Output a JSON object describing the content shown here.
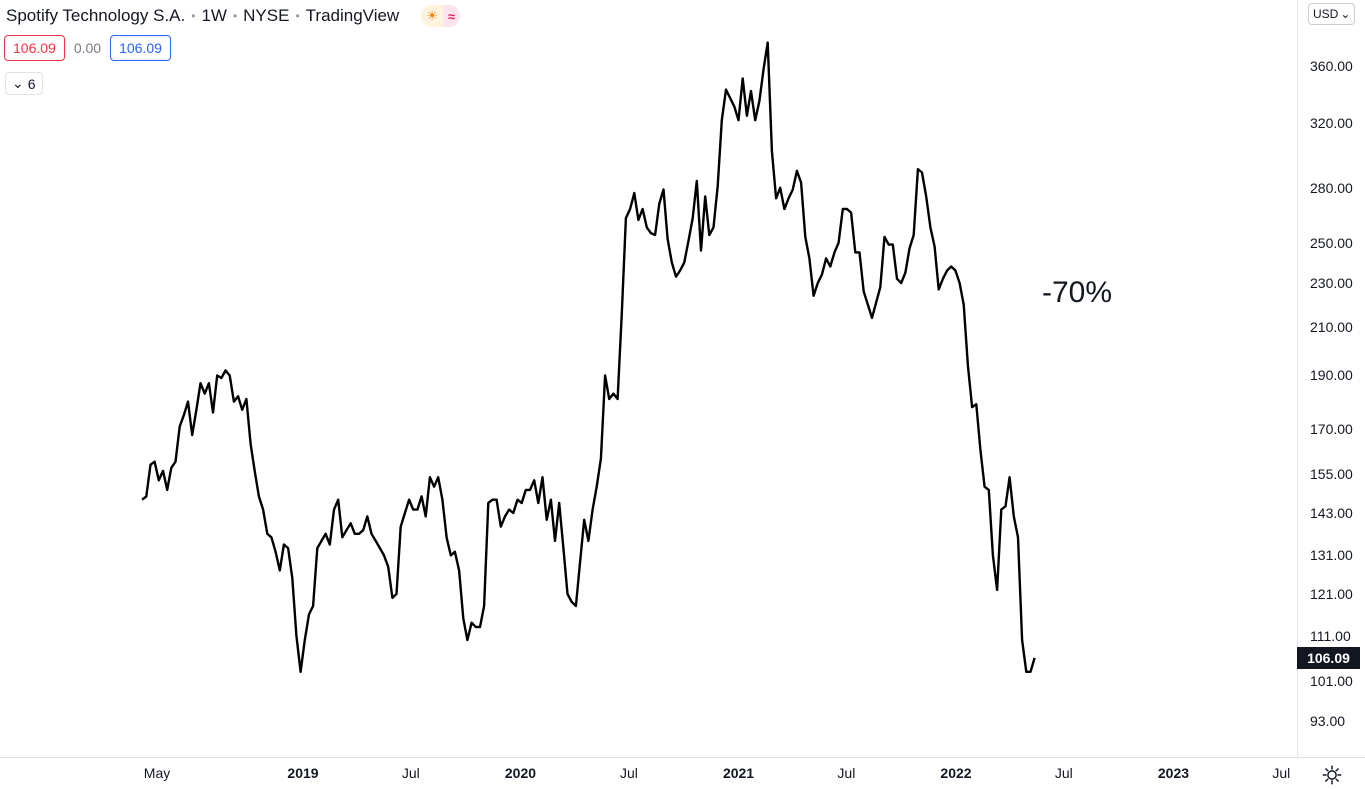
{
  "header": {
    "symbol": "Spotify Technology S.A.",
    "interval": "1W",
    "exchange": "NYSE",
    "source": "TradingView",
    "sun_icon": "sun-icon",
    "wave_icon": "wave-icon",
    "sun_glyph": "☀",
    "wave_glyph": "≈"
  },
  "ohlc": {
    "sell": "106.09",
    "change": "0.00",
    "buy": "106.09"
  },
  "indicators": {
    "count": "6",
    "chevron": "⌄"
  },
  "currency": {
    "label": "USD",
    "chevron": "⌄"
  },
  "annotation": "-70%",
  "price_tag": "106.09",
  "chart_data": {
    "type": "line",
    "scale": "log",
    "x_start": "2018-04-06",
    "x_step_days": 7,
    "y_ticks": [
      "360.00",
      "320.00",
      "280.00",
      "250.00",
      "230.00",
      "210.00",
      "190.00",
      "170.00",
      "155.00",
      "143.00",
      "131.00",
      "121.00",
      "111.00",
      "101.00",
      "93.00"
    ],
    "x_ticks": [
      {
        "label": "May",
        "date": "2018-05-01",
        "bold": false
      },
      {
        "label": "2019",
        "date": "2019-01-01",
        "bold": true
      },
      {
        "label": "Jul",
        "date": "2019-07-01",
        "bold": false
      },
      {
        "label": "2020",
        "date": "2020-01-01",
        "bold": true
      },
      {
        "label": "Jul",
        "date": "2020-07-01",
        "bold": false
      },
      {
        "label": "2021",
        "date": "2021-01-01",
        "bold": true
      },
      {
        "label": "Jul",
        "date": "2021-07-01",
        "bold": false
      },
      {
        "label": "2022",
        "date": "2022-01-01",
        "bold": true
      },
      {
        "label": "Jul",
        "date": "2022-07-01",
        "bold": false
      },
      {
        "label": "2023",
        "date": "2023-01-01",
        "bold": true
      },
      {
        "label": "Jul",
        "date": "2023-07-01",
        "bold": false
      }
    ],
    "ylim": [
      88,
      380
    ],
    "last_price": 106.09,
    "color": "#000000",
    "values": [
      147,
      148,
      158,
      159,
      153,
      156,
      150,
      157,
      159,
      171,
      175,
      180,
      168,
      177,
      187,
      183,
      187,
      176,
      190,
      189,
      192,
      190,
      180,
      182,
      177,
      181,
      165,
      156,
      148,
      144,
      137,
      136,
      132,
      127,
      134,
      133,
      125,
      111,
      103,
      110,
      116,
      118,
      133,
      135,
      137,
      134,
      144,
      147,
      136,
      138,
      140,
      137,
      137,
      138,
      142,
      137,
      135,
      133,
      131,
      128,
      120,
      121,
      139,
      143,
      147,
      144,
      144,
      148,
      142,
      154,
      151,
      154,
      147,
      136,
      131,
      132,
      127,
      115,
      110,
      114,
      113,
      113,
      118,
      146,
      147,
      147,
      139,
      142,
      144,
      143,
      147,
      146,
      150,
      150,
      153,
      146,
      154,
      141,
      147,
      135,
      146,
      133,
      121,
      119,
      118,
      129,
      141,
      135,
      144,
      151,
      160,
      190,
      181,
      183,
      181,
      216,
      263,
      268,
      277,
      262,
      268,
      258,
      255,
      254,
      271,
      279,
      252,
      240,
      233,
      236,
      240,
      251,
      263,
      284,
      246,
      275,
      254,
      258,
      281,
      322,
      343,
      337,
      331,
      322,
      351,
      325,
      342,
      322,
      335,
      358,
      378,
      302,
      274,
      280,
      268,
      274,
      279,
      290,
      283,
      253,
      242,
      224,
      230,
      234,
      242,
      238,
      245,
      250,
      268,
      268,
      266,
      245,
      245,
      226,
      220,
      214,
      221,
      228,
      253,
      249,
      249,
      232,
      230,
      235,
      247,
      254,
      291,
      289,
      275,
      258,
      248,
      227,
      232,
      236,
      238,
      236,
      230,
      220,
      194,
      178,
      179,
      163,
      151,
      150,
      131,
      122,
      144,
      145,
      154,
      142,
      136,
      110,
      103,
      103,
      106
    ]
  }
}
